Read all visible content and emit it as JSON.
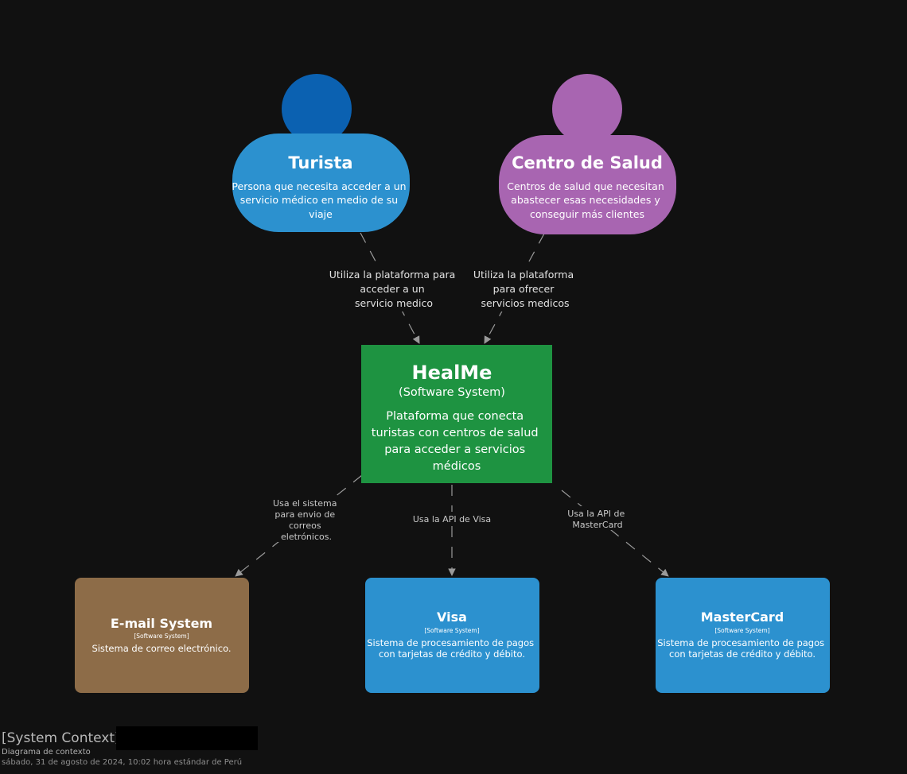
{
  "people": {
    "turista": {
      "name": "Turista",
      "description": [
        "Persona que necesita acceder a un",
        "servicio médico en medio de su",
        "viaje"
      ],
      "head_color": "#0b61b1",
      "body_color": "#2c91cf"
    },
    "centro": {
      "name": "Centro de Salud",
      "description": [
        "Centros de salud que necesitan",
        "abastecer esas necesidades y",
        "conseguir más clientes"
      ],
      "head_color": "#a865b1",
      "body_color": "#a865b1"
    }
  },
  "main_system": {
    "name": "HealMe",
    "type": "(Software System)",
    "description": [
      "Plataforma que conecta",
      "turistas con centros de salud",
      "para acceder a servicios",
      "médicos"
    ],
    "color": "#1e9341"
  },
  "external_systems": {
    "email": {
      "name": "E-mail System",
      "type": "[Software System]",
      "description": [
        "Sistema de correo electrónico."
      ],
      "color": "#8d6c48"
    },
    "visa": {
      "name": "Visa",
      "type": "[Software System]",
      "description": [
        "Sistema de procesamiento de pagos",
        "con tarjetas de crédito y débito."
      ],
      "color": "#2c91cf"
    },
    "mastercard": {
      "name": "MasterCard",
      "type": "[Software System]",
      "description": [
        "Sistema de procesamiento de pagos",
        "con tarjetas de crédito y débito."
      ],
      "color": "#2c91cf"
    }
  },
  "relations": {
    "turista_to_healme": [
      "Utiliza la plataforma para",
      "acceder a un",
      "servicio medico"
    ],
    "centro_to_healme": [
      "Utiliza la plataforma",
      "para ofrecer",
      "servicios medicos"
    ],
    "healme_to_email": [
      "Usa el sistema",
      "para envio de",
      "correos",
      "eletrónicos."
    ],
    "healme_to_visa": [
      "Usa la API de Visa"
    ],
    "healme_to_mastercard": [
      "Usa la API de",
      "MasterCard"
    ]
  },
  "footer": {
    "title": "[System Context]",
    "subtitle": "Diagrama de contexto",
    "date": "sábado, 31 de agosto de 2024, 10:02 hora estándar de Perú"
  },
  "colors": {
    "background": "#111111",
    "text": "#ffffff",
    "relation_line": "#9a9a9a",
    "relation_text": "#d8d8d8"
  }
}
